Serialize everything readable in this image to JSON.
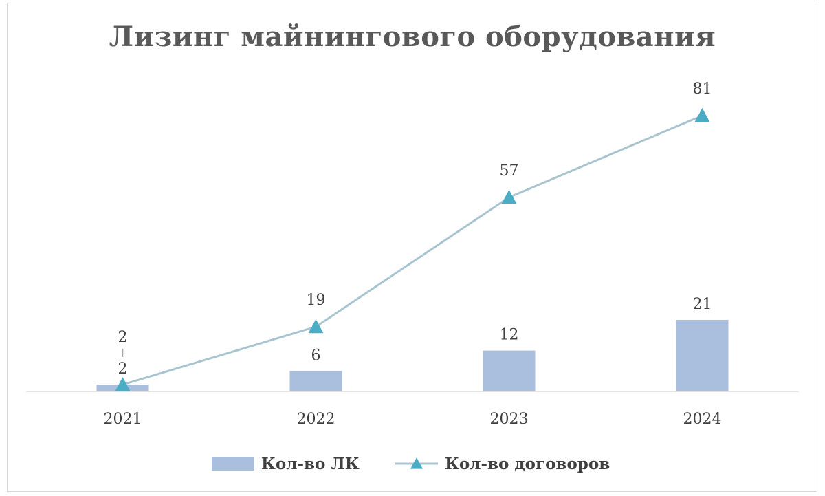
{
  "chart_data": {
    "type": "bar+line",
    "title": "Лизинг майнингового оборудования",
    "categories": [
      "2021",
      "2022",
      "2023",
      "2024"
    ],
    "series": [
      {
        "name": "Кол-во ЛК",
        "type": "bar",
        "values": [
          2,
          6,
          12,
          21
        ],
        "color": "#a9bfdd"
      },
      {
        "name": "Кол-во договоров",
        "type": "line",
        "marker": "triangle",
        "values": [
          2,
          19,
          57,
          81
        ],
        "color": "#a8c4cf",
        "marker_color": "#4bacc6"
      }
    ],
    "legend_position": "bottom",
    "grid": false
  }
}
